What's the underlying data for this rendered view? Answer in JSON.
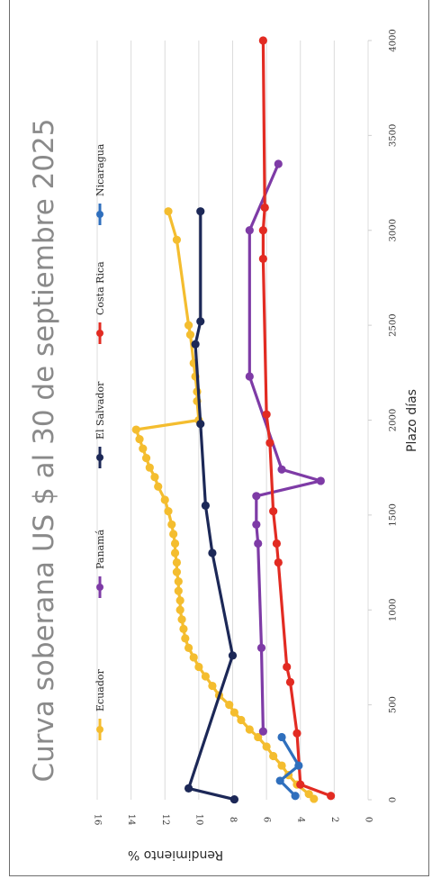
{
  "chart_data": {
    "type": "line",
    "title": "Curva soberana US $ al 30 de septiembre 2025",
    "xlabel": "Plazo días",
    "ylabel": "Rendimiento %",
    "xlim": [
      0,
      4000
    ],
    "ylim": [
      0,
      16
    ],
    "x_ticks": [
      "0",
      "500",
      "1000",
      "1500",
      "2000",
      "2500",
      "3000",
      "3500",
      "4000"
    ],
    "y_ticks": [
      "0",
      "2",
      "4",
      "6",
      "8",
      "10",
      "12",
      "14",
      "16"
    ],
    "grid": true,
    "legend_position": "top",
    "series": [
      {
        "name": "Ecuador",
        "color": "#f4bd2f",
        "points": [
          [
            5,
            3.2
          ],
          [
            30,
            3.5
          ],
          [
            80,
            4.2
          ],
          [
            130,
            4.7
          ],
          [
            180,
            5.1
          ],
          [
            230,
            5.6
          ],
          [
            280,
            6.0
          ],
          [
            330,
            6.5
          ],
          [
            370,
            7.0
          ],
          [
            420,
            7.5
          ],
          [
            460,
            7.9
          ],
          [
            500,
            8.2
          ],
          [
            550,
            8.8
          ],
          [
            600,
            9.2
          ],
          [
            650,
            9.6
          ],
          [
            700,
            10.0
          ],
          [
            750,
            10.3
          ],
          [
            800,
            10.6
          ],
          [
            850,
            10.8
          ],
          [
            900,
            10.9
          ],
          [
            950,
            11.0
          ],
          [
            1000,
            11.1
          ],
          [
            1050,
            11.1
          ],
          [
            1100,
            11.2
          ],
          [
            1150,
            11.2
          ],
          [
            1200,
            11.3
          ],
          [
            1250,
            11.3
          ],
          [
            1300,
            11.4
          ],
          [
            1350,
            11.4
          ],
          [
            1400,
            11.5
          ],
          [
            1450,
            11.6
          ],
          [
            1520,
            11.8
          ],
          [
            1580,
            12.0
          ],
          [
            1650,
            12.4
          ],
          [
            1700,
            12.6
          ],
          [
            1750,
            12.9
          ],
          [
            1800,
            13.1
          ],
          [
            1850,
            13.3
          ],
          [
            1900,
            13.5
          ],
          [
            1950,
            13.7
          ],
          [
            2000,
            10.0
          ],
          [
            2100,
            10.1
          ],
          [
            2150,
            10.1
          ],
          [
            2230,
            10.2
          ],
          [
            2300,
            10.3
          ],
          [
            2450,
            10.5
          ],
          [
            2500,
            10.6
          ],
          [
            2950,
            11.3
          ],
          [
            3100,
            11.8
          ]
        ]
      },
      {
        "name": "Panamá",
        "color": "#7e3ba6",
        "points": [
          [
            360,
            6.2
          ],
          [
            800,
            6.3
          ],
          [
            1350,
            6.5
          ],
          [
            1450,
            6.6
          ],
          [
            1600,
            6.6
          ],
          [
            1680,
            2.8
          ],
          [
            1740,
            5.1
          ],
          [
            2230,
            7.0
          ],
          [
            3000,
            7.0
          ],
          [
            3350,
            5.3
          ]
        ]
      },
      {
        "name": "El Salvador",
        "color": "#1c2857",
        "points": [
          [
            2,
            7.9
          ],
          [
            60,
            10.6
          ],
          [
            760,
            8.0
          ],
          [
            1300,
            9.2
          ],
          [
            1550,
            9.6
          ],
          [
            1980,
            9.9
          ],
          [
            2400,
            10.2
          ],
          [
            2520,
            9.9
          ],
          [
            3100,
            9.9
          ]
        ]
      },
      {
        "name": "Costa Rica",
        "color": "#e22b22",
        "points": [
          [
            20,
            2.2
          ],
          [
            80,
            4.0
          ],
          [
            350,
            4.2
          ],
          [
            620,
            4.6
          ],
          [
            700,
            4.8
          ],
          [
            1250,
            5.3
          ],
          [
            1350,
            5.4
          ],
          [
            1520,
            5.6
          ],
          [
            1880,
            5.8
          ],
          [
            2030,
            6.0
          ],
          [
            2850,
            6.2
          ],
          [
            3000,
            6.2
          ],
          [
            3120,
            6.1
          ],
          [
            4000,
            6.2
          ]
        ]
      },
      {
        "name": "Nicaragua",
        "color": "#2f6fbd",
        "points": [
          [
            20,
            4.3
          ],
          [
            100,
            5.2
          ],
          [
            180,
            4.1
          ],
          [
            330,
            5.1
          ]
        ]
      }
    ]
  }
}
